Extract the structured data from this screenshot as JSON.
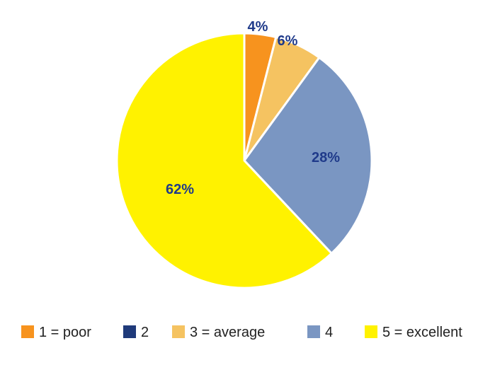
{
  "chart_data": {
    "type": "pie",
    "categories": [
      "1 = poor",
      "2",
      "3 = average",
      "4",
      "5 = excellent"
    ],
    "values": [
      4,
      0,
      6,
      28,
      62
    ],
    "labels": [
      "4%",
      "",
      "6%",
      "28%",
      "62%"
    ],
    "colors": [
      "#f7931e",
      "#1f3a7a",
      "#f5c361",
      "#7a96c2",
      "#fff200"
    ],
    "label_color": "#1f3a8a",
    "legend_position": "bottom"
  }
}
